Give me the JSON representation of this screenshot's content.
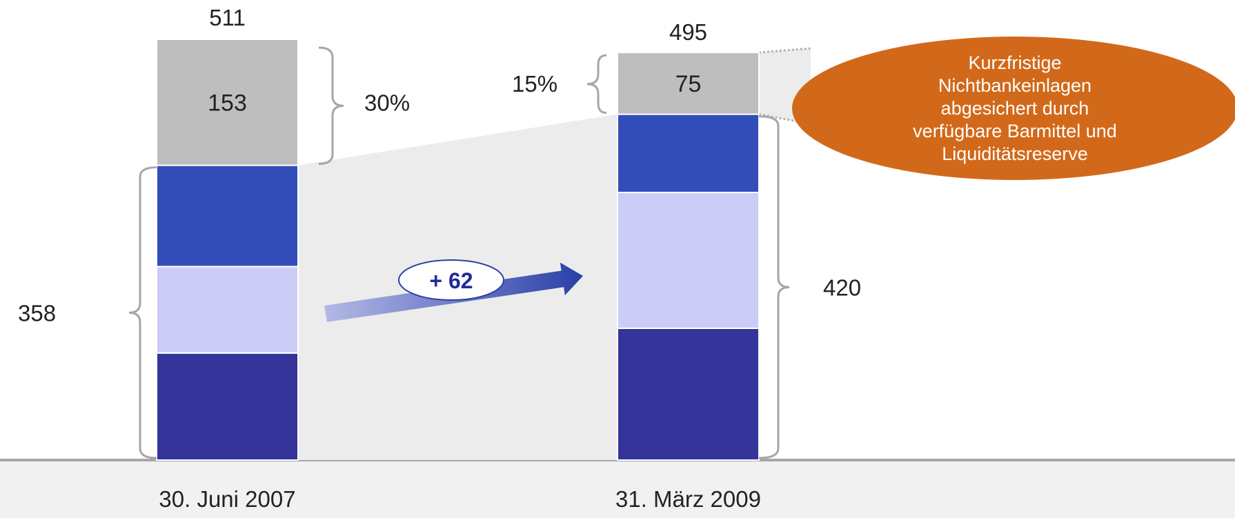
{
  "chart_data": {
    "type": "bar",
    "stacked": true,
    "categories": [
      "30. Juni 2007",
      "31. März 2009"
    ],
    "totals": [
      511,
      495
    ],
    "top_segment_values": [
      153,
      75
    ],
    "top_segment_shares": [
      "30%",
      "15%"
    ],
    "lower_totals": [
      358,
      420
    ],
    "lower_segments_estimated": [
      [
        130,
        105,
        123
      ],
      [
        160,
        165,
        95
      ]
    ],
    "change_label": "+ 62",
    "ylim": [
      0,
      511
    ],
    "grid": false,
    "legend": "none",
    "callout_lines": [
      "Kurzfristige",
      "Nichtbankeinlagen",
      "abgesichert durch",
      "verfügbare Barmittel und",
      "Liquiditätsreserve"
    ]
  },
  "colors": {
    "top_segment": "#bebebe",
    "segment_dark": "#34349a",
    "segment_light": "#ccccf8",
    "segment_mid": "#344eb9",
    "callout": "#d2691a",
    "connector": "#ececec",
    "floor": "#a7a7a7"
  }
}
